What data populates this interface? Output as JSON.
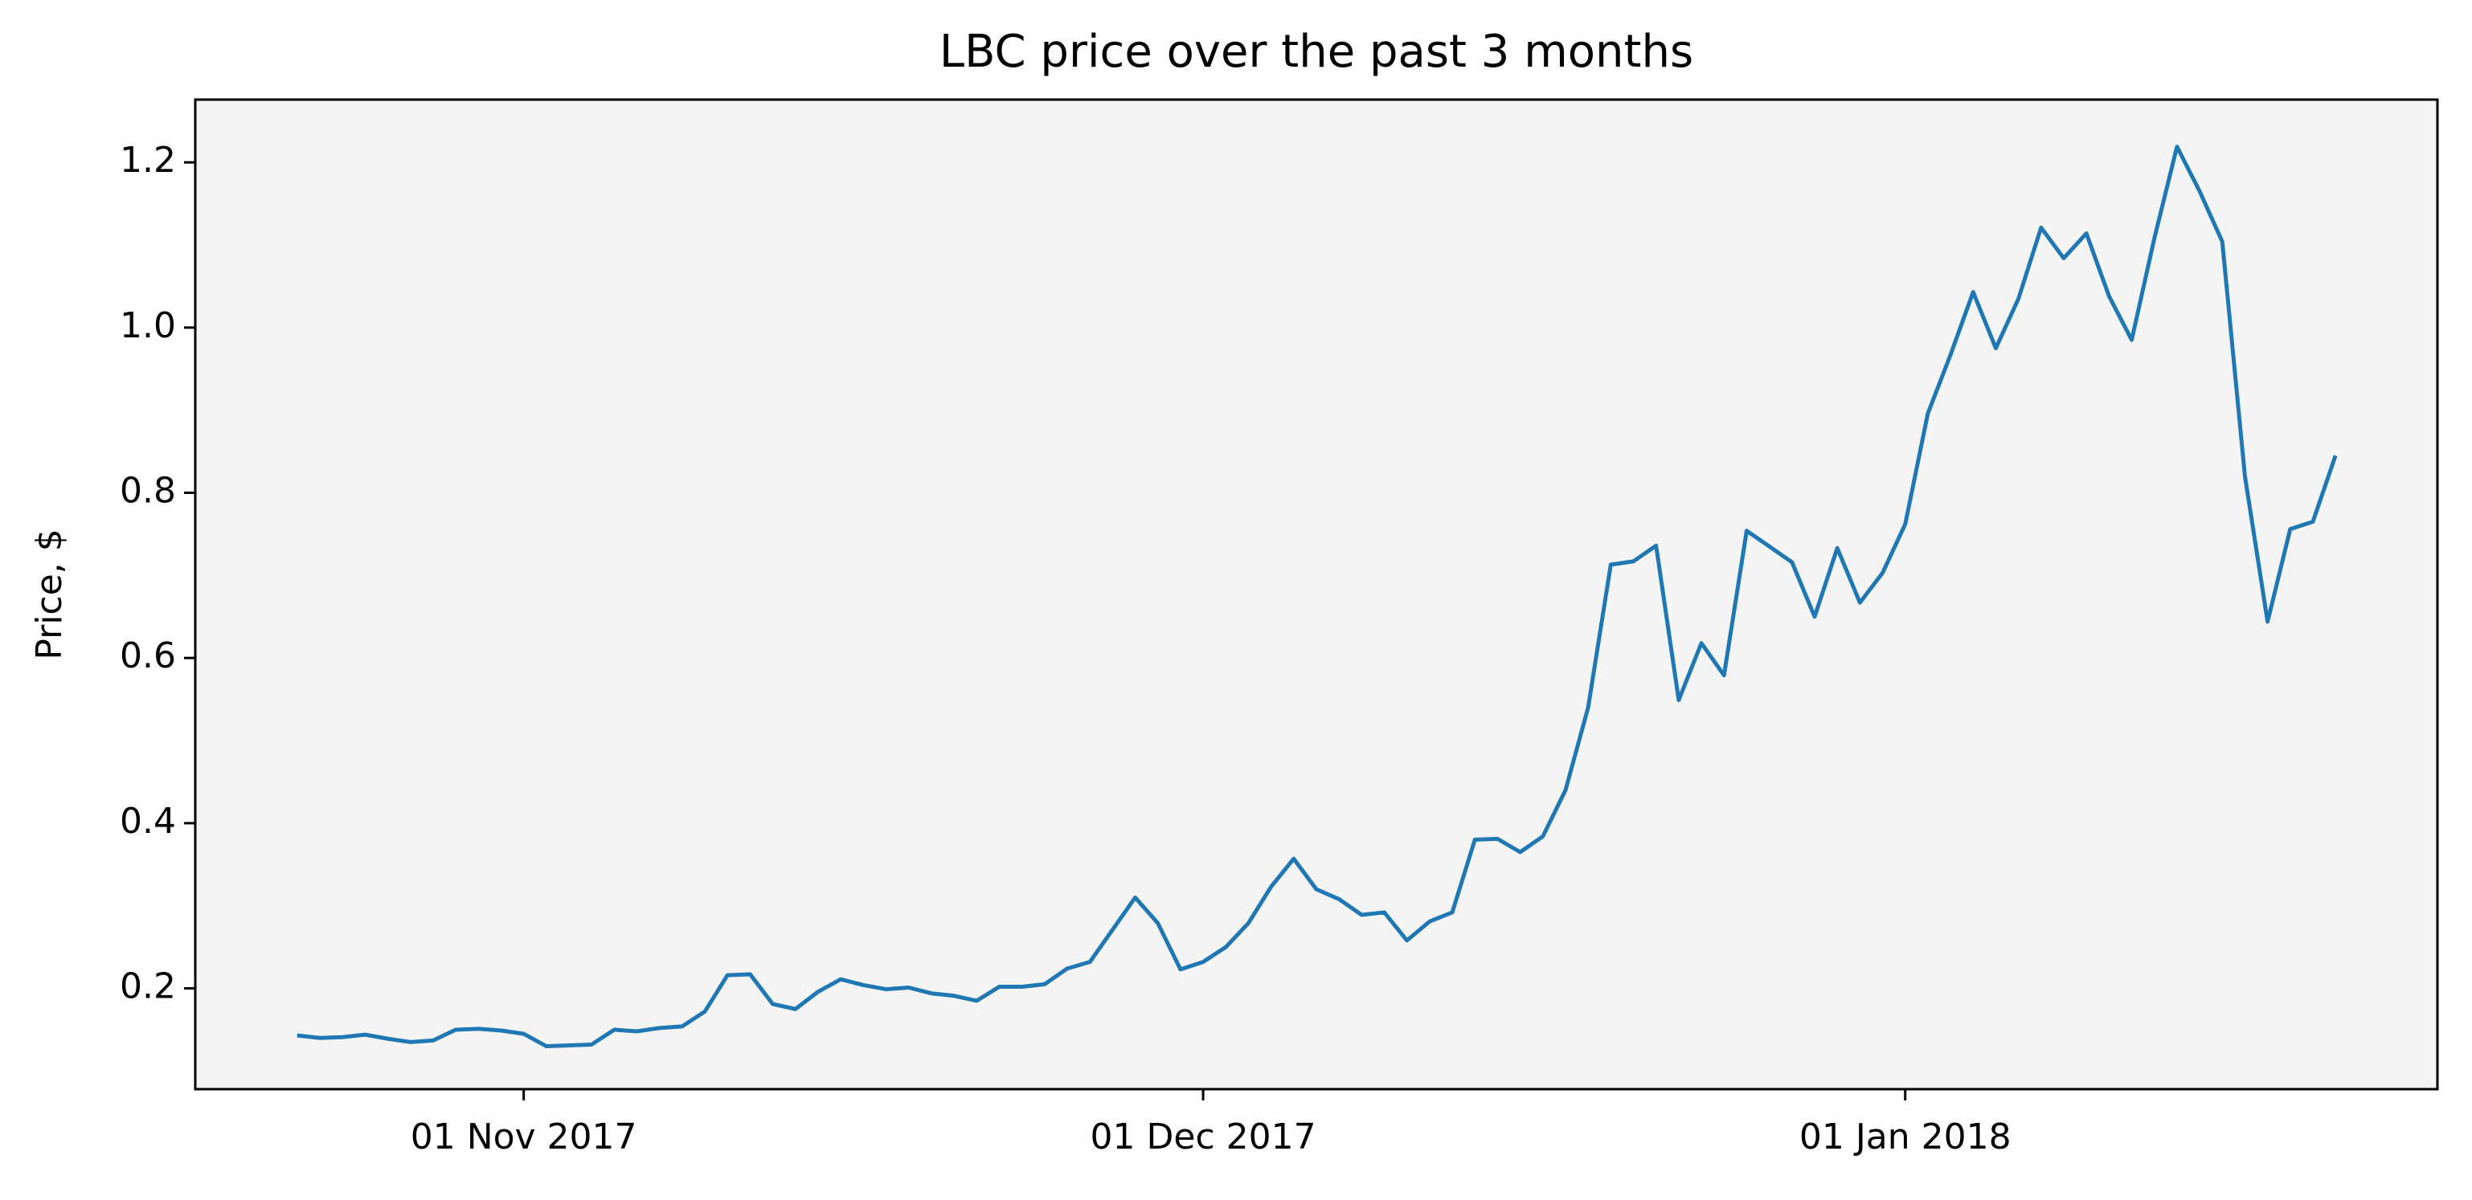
{
  "chart_data": {
    "type": "line",
    "title": "LBC price over the past 3 months",
    "y_label": "Price, $",
    "x": [
      "2017-10-22",
      "2017-10-23",
      "2017-10-24",
      "2017-10-25",
      "2017-10-26",
      "2017-10-27",
      "2017-10-28",
      "2017-10-29",
      "2017-10-30",
      "2017-10-31",
      "2017-11-01",
      "2017-11-02",
      "2017-11-03",
      "2017-11-04",
      "2017-11-05",
      "2017-11-06",
      "2017-11-07",
      "2017-11-08",
      "2017-11-09",
      "2017-11-10",
      "2017-11-11",
      "2017-11-12",
      "2017-11-13",
      "2017-11-14",
      "2017-11-15",
      "2017-11-16",
      "2017-11-17",
      "2017-11-18",
      "2017-11-19",
      "2017-11-20",
      "2017-11-21",
      "2017-11-22",
      "2017-11-23",
      "2017-11-24",
      "2017-11-25",
      "2017-11-26",
      "2017-11-27",
      "2017-11-28",
      "2017-11-29",
      "2017-11-30",
      "2017-12-01",
      "2017-12-02",
      "2017-12-03",
      "2017-12-04",
      "2017-12-05",
      "2017-12-06",
      "2017-12-07",
      "2017-12-08",
      "2017-12-09",
      "2017-12-10",
      "2017-12-11",
      "2017-12-12",
      "2017-12-13",
      "2017-12-14",
      "2017-12-15",
      "2017-12-16",
      "2017-12-17",
      "2017-12-18",
      "2017-12-19",
      "2017-12-20",
      "2017-12-21",
      "2017-12-22",
      "2017-12-23",
      "2017-12-24",
      "2017-12-25",
      "2017-12-26",
      "2017-12-27",
      "2017-12-28",
      "2017-12-29",
      "2017-12-30",
      "2017-12-31",
      "2018-01-01",
      "2018-01-02",
      "2018-01-03",
      "2018-01-04",
      "2018-01-05",
      "2018-01-06",
      "2018-01-07",
      "2018-01-08",
      "2018-01-09",
      "2018-01-10",
      "2018-01-11",
      "2018-01-12",
      "2018-01-13",
      "2018-01-14",
      "2018-01-15",
      "2018-01-16",
      "2018-01-17",
      "2018-01-18",
      "2018-01-19",
      "2018-01-20"
    ],
    "series": [
      {
        "name": "LBC",
        "color": "#1f77b4",
        "values": [
          0.143,
          0.14,
          0.141,
          0.144,
          0.139,
          0.135,
          0.137,
          0.15,
          0.151,
          0.149,
          0.145,
          0.13,
          0.131,
          0.132,
          0.15,
          0.148,
          0.152,
          0.154,
          0.172,
          0.216,
          0.217,
          0.181,
          0.175,
          0.196,
          0.211,
          0.204,
          0.199,
          0.201,
          0.194,
          0.191,
          0.185,
          0.202,
          0.202,
          0.205,
          0.224,
          0.232,
          0.271,
          0.31,
          0.279,
          0.223,
          0.232,
          0.25,
          0.279,
          0.323,
          0.357,
          0.32,
          0.308,
          0.289,
          0.292,
          0.258,
          0.281,
          0.292,
          0.38,
          0.381,
          0.365,
          0.384,
          0.44,
          0.54,
          0.713,
          0.717,
          0.736,
          0.549,
          0.618,
          0.579,
          0.754,
          0.735,
          0.716,
          0.65,
          0.733,
          0.667,
          0.703,
          0.762,
          0.896,
          0.967,
          1.043,
          0.975,
          1.035,
          1.121,
          1.084,
          1.114,
          1.038,
          0.985,
          1.108,
          1.219,
          1.165,
          1.104,
          0.82,
          0.644,
          0.756,
          0.765,
          0.845
        ]
      }
    ],
    "xlim": [
      "2017-10-17T12:00",
      "2018-01-24T12:00"
    ],
    "xticks": [
      {
        "value": "2017-11-01",
        "label": "01 Nov 2017"
      },
      {
        "value": "2017-12-01",
        "label": "01 Dec 2017"
      },
      {
        "value": "2018-01-01",
        "label": "01 Jan 2018"
      }
    ],
    "ylim": [
      0.078,
      1.276
    ],
    "yticks": [
      0.2,
      0.4,
      0.6,
      0.8,
      {
        "value": 1,
        "label": "1.0"
      },
      1.2
    ],
    "plot_background": "#f4f4f4"
  }
}
